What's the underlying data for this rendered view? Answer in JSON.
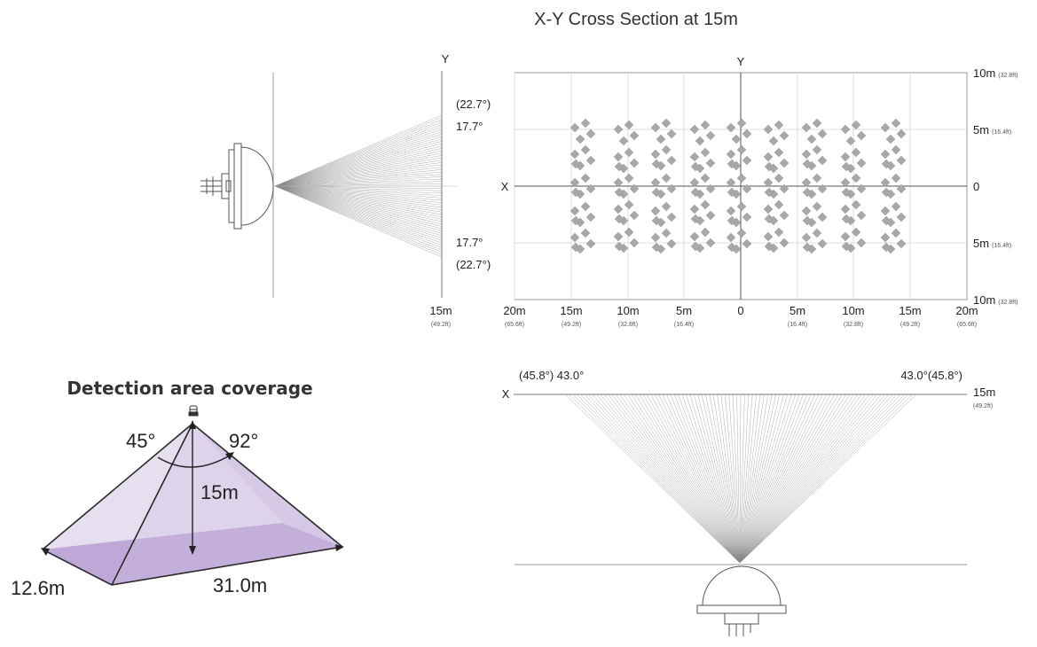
{
  "xy_section": {
    "title": "X-Y Cross Section at 15m",
    "axis_x": "X",
    "axis_y": "Y",
    "right_labels": [
      {
        "main": "10m",
        "sub": "(32.8ft)"
      },
      {
        "main": "5m",
        "sub": "(16.4ft)"
      },
      {
        "main": "0",
        "sub": ""
      },
      {
        "main": "5m",
        "sub": "(16.4ft)"
      },
      {
        "main": "10m",
        "sub": "(32.8ft)"
      }
    ],
    "bottom_labels": [
      {
        "main": "20m",
        "sub": "(65.6ft)"
      },
      {
        "main": "15m",
        "sub": "(49.2ft)"
      },
      {
        "main": "10m",
        "sub": "(32.8ft)"
      },
      {
        "main": "5m",
        "sub": "(16.4ft)"
      },
      {
        "main": "0",
        "sub": ""
      },
      {
        "main": "5m",
        "sub": "(16.4ft)"
      },
      {
        "main": "10m",
        "sub": "(32.8ft)"
      },
      {
        "main": "15m",
        "sub": "(49.2ft)"
      },
      {
        "main": "20m",
        "sub": "(65.6ft)"
      }
    ]
  },
  "side_view": {
    "axis_y": "Y",
    "angle_outer_top": "(22.7°)",
    "angle_inner_top": "17.7°",
    "angle_inner_bottom": "17.7°",
    "angle_outer_bottom": "(22.7°)",
    "distance_main": "15m",
    "distance_sub": "(49.2ft)"
  },
  "front_view": {
    "axis_x": "X",
    "angle_left": "(45.8°) 43.0°",
    "angle_right": "43.0°(45.8°)",
    "distance_main": "15m",
    "distance_sub": "(49.2ft)"
  },
  "coverage": {
    "title": "Detection area coverage",
    "angle_left": "45°",
    "angle_right": "92°",
    "height": "15m",
    "width": "12.6m",
    "length": "31.0m",
    "face_color": "#d9cfe8",
    "base_color": "#b99fd3",
    "edge_color": "#2a2a2a"
  }
}
